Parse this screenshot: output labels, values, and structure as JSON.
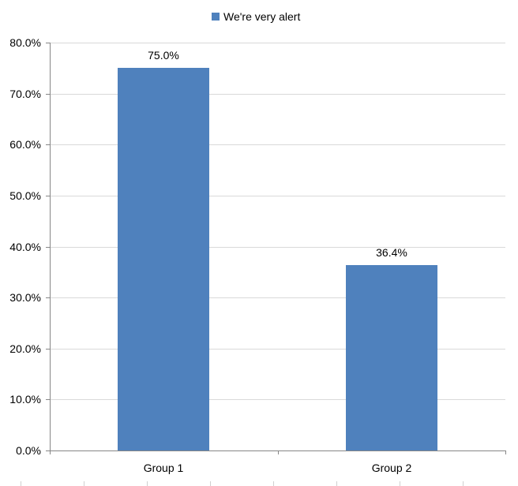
{
  "chart_data": {
    "type": "bar",
    "title": "",
    "categories": [
      "Group 1",
      "Group 2"
    ],
    "series": [
      {
        "name": "We're very alert",
        "values": [
          75.0,
          36.4
        ],
        "color": "#4f81bd"
      }
    ],
    "data_labels": [
      "75.0%",
      "36.4%"
    ],
    "xlabel": "",
    "ylabel": "",
    "ylim": [
      0,
      80
    ],
    "yticks": [
      "0.0%",
      "10.0%",
      "20.0%",
      "30.0%",
      "40.0%",
      "50.0%",
      "60.0%",
      "70.0%",
      "80.0%"
    ],
    "grid": true,
    "legend_position": "top"
  },
  "legend": {
    "label": "We're very alert",
    "color": "#4f81bd"
  },
  "colors": {
    "bar": "#4f81bd",
    "grid": "#d9d9d9",
    "axis": "#868686"
  }
}
